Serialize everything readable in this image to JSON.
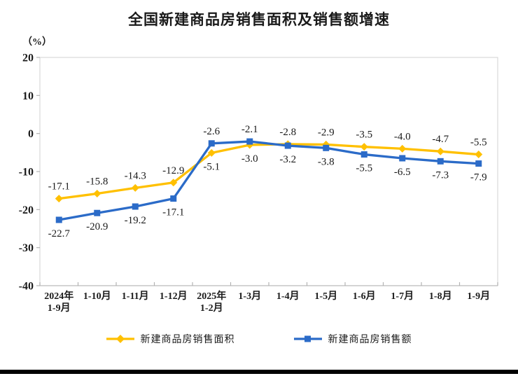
{
  "chart_data": {
    "type": "line",
    "title": "全国新建商品房销售面积及销售额增速",
    "unit_label": "（%）",
    "categories": [
      "2024年\n1-9月",
      "1-10月",
      "1-11月",
      "1-12月",
      "2025年\n1-2月",
      "1-3月",
      "1-4月",
      "1-5月",
      "1-6月",
      "1-7月",
      "1-8月",
      "1-9月"
    ],
    "series": [
      {
        "name": "新建商品房销售面积",
        "color": "#FFC000",
        "marker": "diamond",
        "values": [
          -17.1,
          -15.8,
          -14.3,
          -12.9,
          -5.1,
          -3.0,
          -2.8,
          -2.9,
          -3.5,
          -4.0,
          -4.7,
          -5.5
        ]
      },
      {
        "name": "新建商品房销售额",
        "color": "#2B6BC8",
        "marker": "square",
        "values": [
          -22.7,
          -20.9,
          -19.2,
          -17.1,
          -2.6,
          -2.1,
          -3.2,
          -3.8,
          -5.5,
          -6.5,
          -7.3,
          -7.9
        ]
      }
    ],
    "y_axis": {
      "min": -40,
      "max": 20,
      "step": 10,
      "ticks": [
        20,
        10,
        0,
        -10,
        -20,
        -30,
        -40
      ]
    },
    "xlabel": "",
    "ylabel": "",
    "grid": false,
    "data_labels": true,
    "legend_position": "bottom",
    "colors": {
      "text": "#1a1a1a",
      "plot_border": "#d9d9d9",
      "axis_line": "#c8c8c8",
      "tick": "#b3b3b3"
    }
  }
}
